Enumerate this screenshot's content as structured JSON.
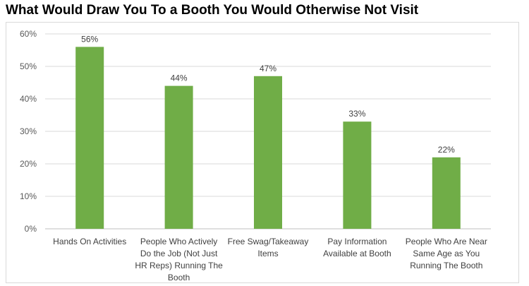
{
  "chart_data": {
    "type": "bar",
    "title": "What Would Draw You To a Booth You Would Otherwise Not Visit",
    "categories": [
      [
        "Hands On Activities"
      ],
      [
        "People Who Actively",
        "Do the Job (Not Just",
        "HR Reps) Running The",
        "Booth"
      ],
      [
        "Free Swag/Takeaway",
        "Items"
      ],
      [
        "Pay Information",
        "Available at Booth"
      ],
      [
        "People Who Are Near",
        "Same Age as You",
        "Running The Booth"
      ]
    ],
    "values": [
      56,
      44,
      47,
      33,
      22
    ],
    "data_labels": [
      "56%",
      "44%",
      "47%",
      "33%",
      "22%"
    ],
    "y_ticks": [
      "0%",
      "10%",
      "20%",
      "30%",
      "40%",
      "50%",
      "60%"
    ],
    "ylim": [
      0,
      60
    ],
    "grid": true,
    "legend": "none",
    "colors": {
      "bar": "#70ad47",
      "grid": "#d9d9d9",
      "axis": "#bfbfbf"
    }
  }
}
